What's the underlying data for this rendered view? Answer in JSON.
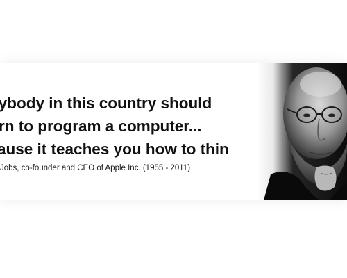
{
  "quote": {
    "lines": [
      "rybody in this country should",
      "rn to program a computer...",
      "ause it teaches you how to think"
    ],
    "attribution": "Jobs, co-founder and CEO of Apple Inc. (1955 - 2011)"
  },
  "portrait": {
    "icon": "person-portrait"
  },
  "colors": {
    "background": "#ffffff",
    "text": "#111111"
  }
}
